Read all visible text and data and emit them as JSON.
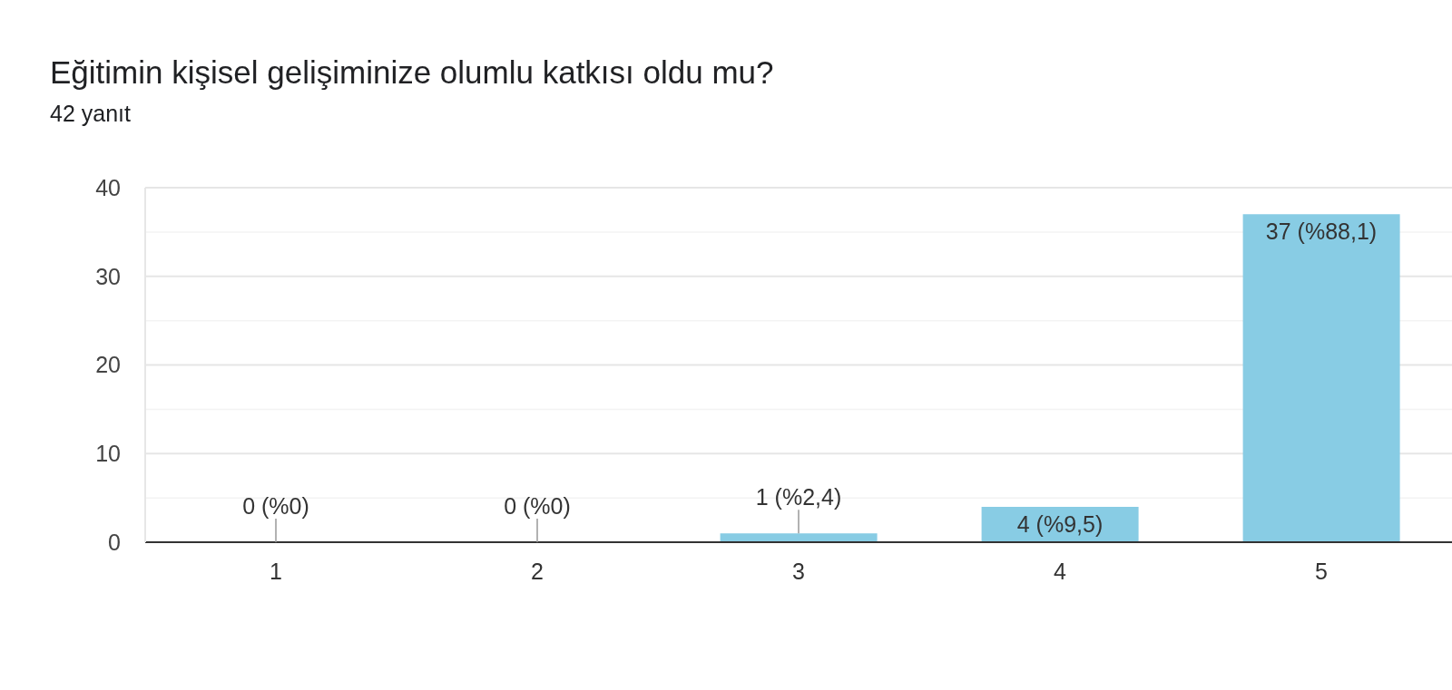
{
  "chart_data": {
    "type": "bar",
    "title": "Eğitimin kişisel gelişiminize olumlu katkısı oldu mu?",
    "subtitle": "42 yanıt",
    "categories": [
      "1",
      "2",
      "3",
      "4",
      "5"
    ],
    "values": [
      0,
      0,
      1,
      4,
      37
    ],
    "color": "#88cce4",
    "value_labels": [
      "0 (%0)",
      "0 (%0)",
      "1 (%2,4)",
      "4 (%9,5)",
      "37 (%88,1)"
    ],
    "ylim": [
      0,
      40
    ],
    "yticks": [
      0,
      {
        "value": 5,
        "label": null
      },
      10,
      {
        "value": 15,
        "label": null
      },
      20,
      {
        "value": 25,
        "label": null
      },
      30,
      {
        "value": 35,
        "label": null
      },
      40
    ],
    "grid": "y"
  }
}
